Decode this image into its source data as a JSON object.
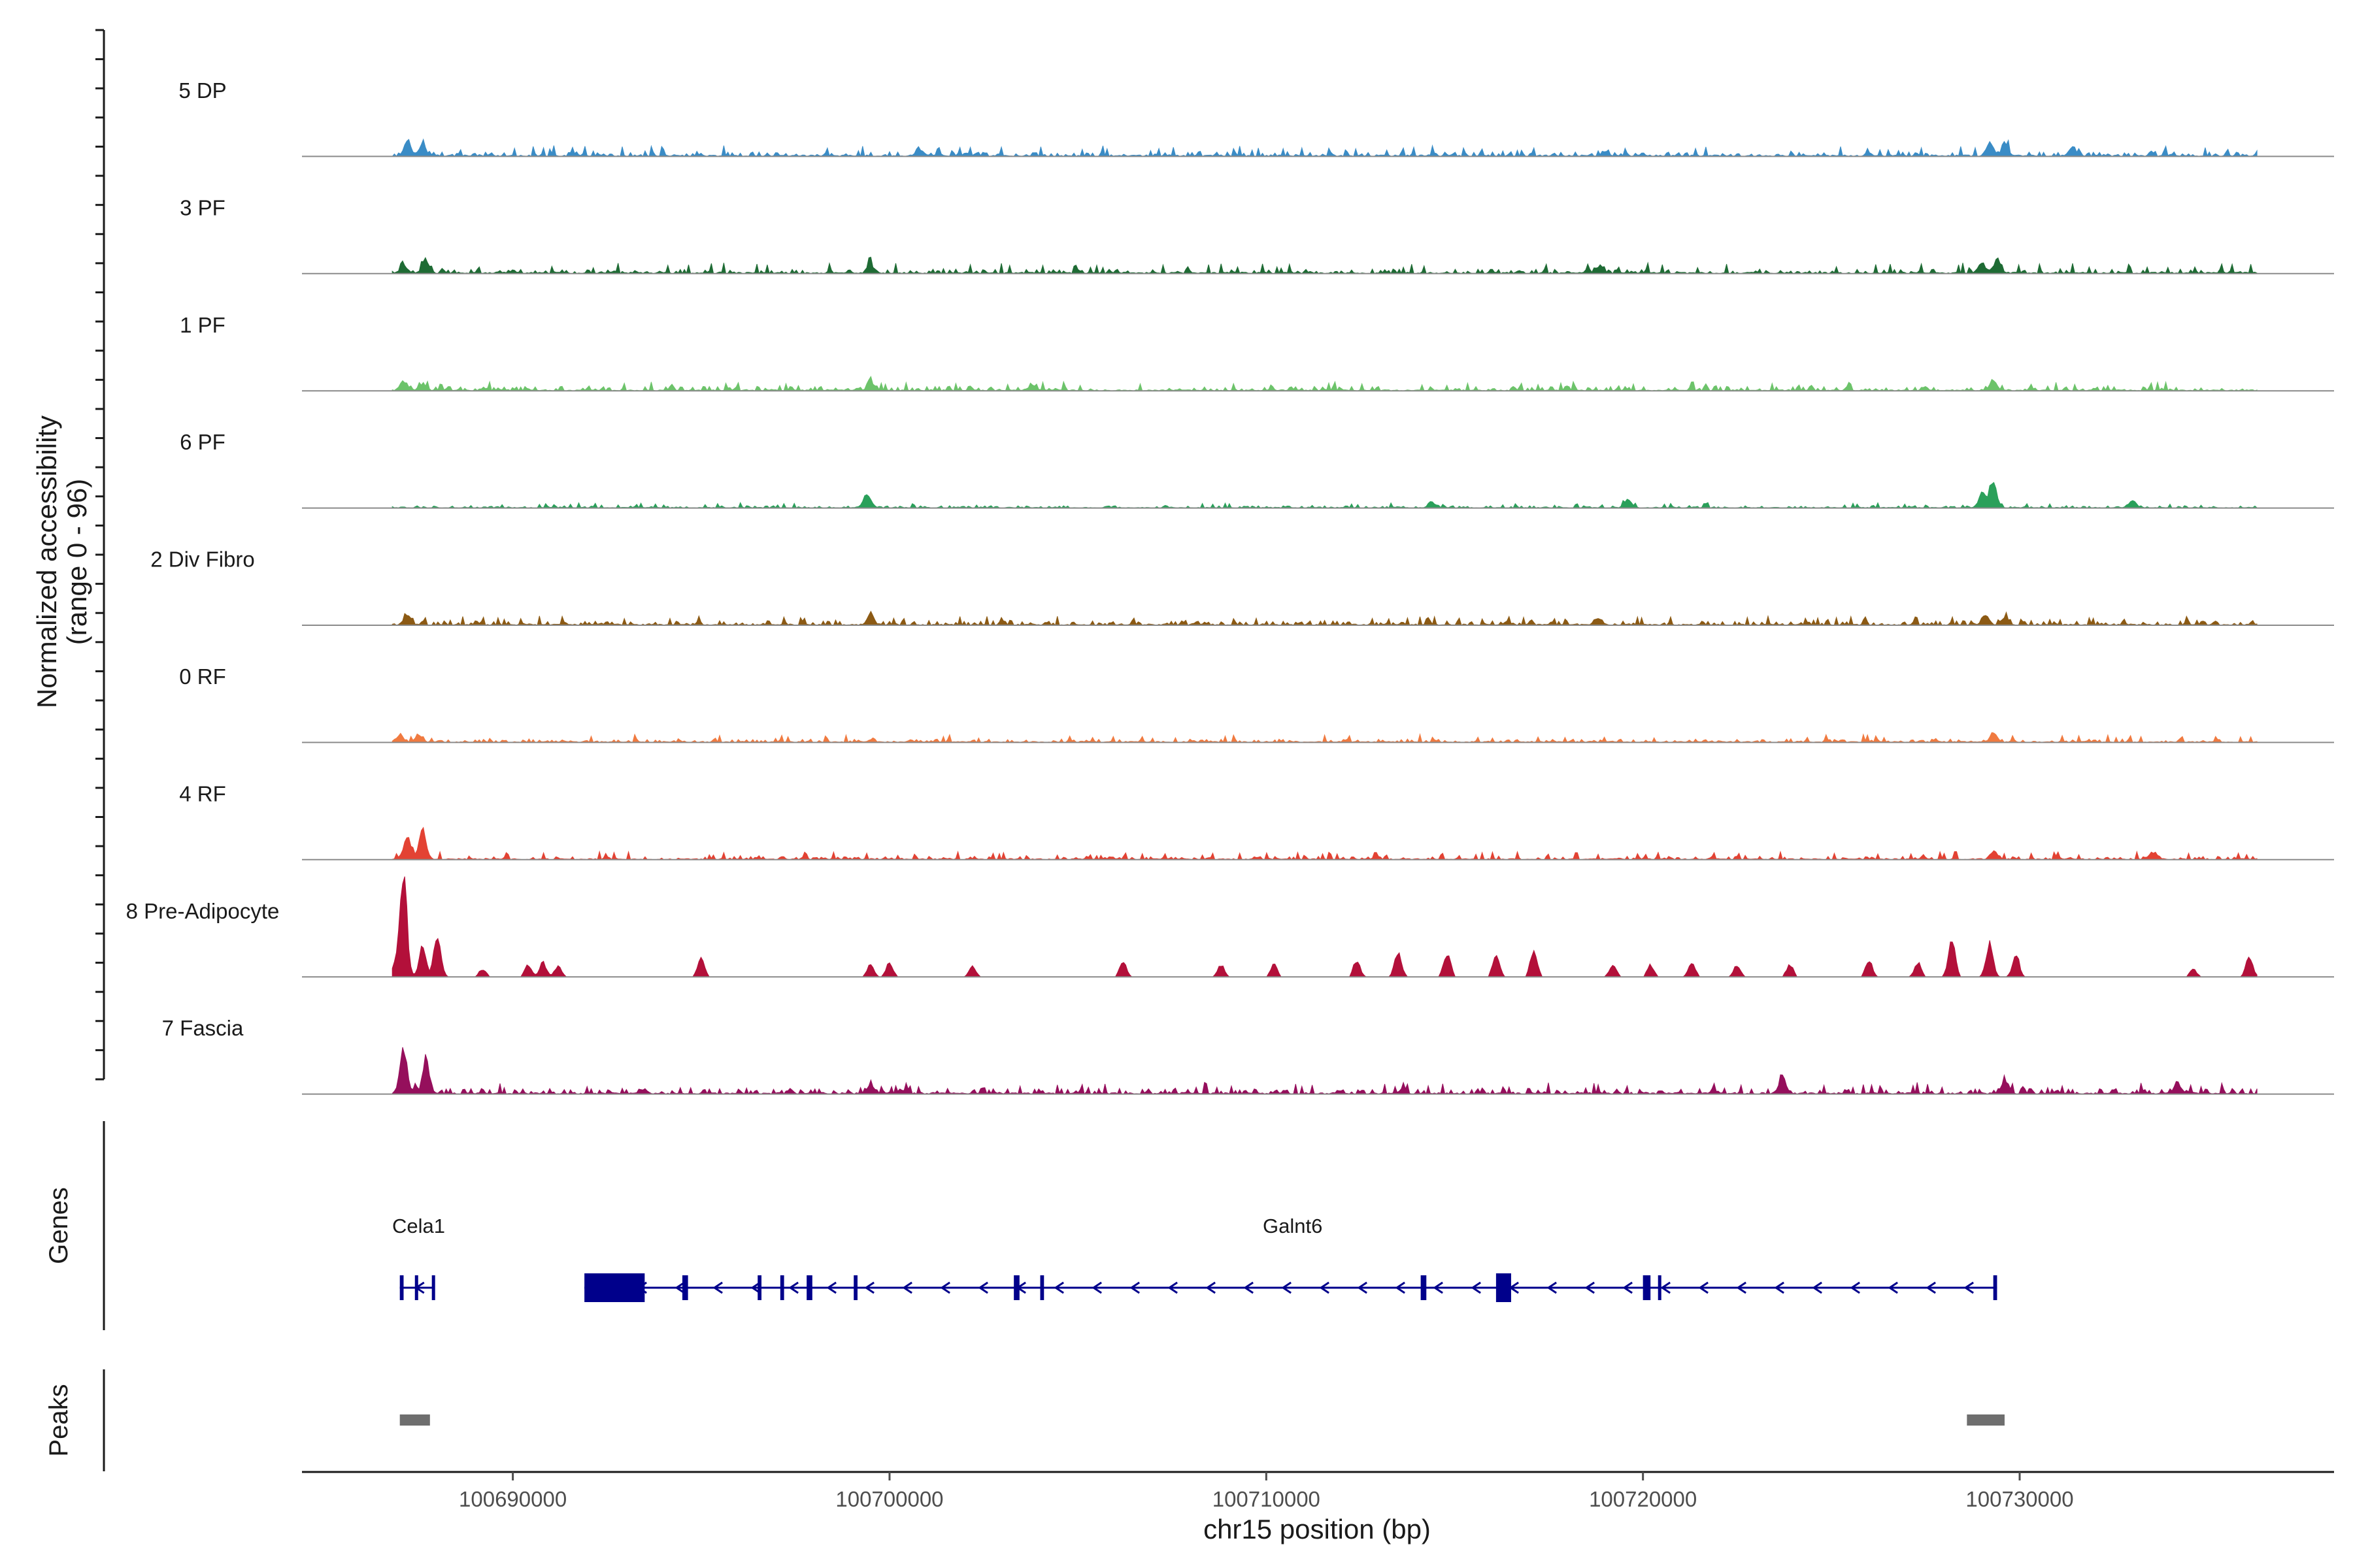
{
  "chart_data": {
    "type": "area",
    "title": "",
    "region": {
      "chrom": "chr15",
      "start": 100684000,
      "end": 100738500
    },
    "ylabel_line1": "Normalized accessibility",
    "ylabel_line2": "(range 0 - 96)",
    "y_range": [
      0,
      96
    ],
    "xlabel": "chr15 position (bp)",
    "x_ticks": [
      {
        "value": 100690000,
        "label": "100690000"
      },
      {
        "value": 100700000,
        "label": "100700000"
      },
      {
        "value": 100710000,
        "label": "100710000"
      },
      {
        "value": 100720000,
        "label": "100720000"
      },
      {
        "value": 100730000,
        "label": "100730000"
      }
    ],
    "tracks": [
      {
        "name": "5 DP",
        "color": "#3a8cc6",
        "baseline": 4,
        "noise": 4,
        "peaks": [
          [
            100687200,
            15
          ],
          [
            100687600,
            10
          ],
          [
            100700800,
            6
          ],
          [
            100719000,
            4
          ],
          [
            100729200,
            12
          ],
          [
            100729600,
            10
          ],
          [
            100731400,
            8
          ]
        ]
      },
      {
        "name": "3 PF",
        "color": "#1e6b34",
        "baseline": 4,
        "noise": 4,
        "peaks": [
          [
            100687100,
            8
          ],
          [
            100687700,
            12
          ],
          [
            100699500,
            8
          ],
          [
            100718800,
            5
          ],
          [
            100729000,
            9
          ],
          [
            100729400,
            14
          ]
        ]
      },
      {
        "name": "1 PF",
        "color": "#6cc36a",
        "baseline": 4,
        "noise": 3,
        "peaks": [
          [
            100687100,
            8
          ],
          [
            100687600,
            7
          ],
          [
            100699500,
            9
          ],
          [
            100703800,
            5
          ],
          [
            100729300,
            10
          ]
        ]
      },
      {
        "name": "6 PF",
        "color": "#2aa05a",
        "baseline": 2,
        "noise": 2,
        "peaks": [
          [
            100699400,
            14
          ],
          [
            100719600,
            8
          ],
          [
            100729300,
            24
          ],
          [
            100729000,
            14
          ],
          [
            100733000,
            7
          ],
          [
            100714400,
            6
          ]
        ]
      },
      {
        "name": "2 Div Fibro",
        "color": "#8c5a14",
        "baseline": 4,
        "noise": 3,
        "peaks": [
          [
            100687200,
            9
          ],
          [
            100699500,
            10
          ],
          [
            100718800,
            6
          ],
          [
            100729100,
            10
          ],
          [
            100729600,
            8
          ]
        ]
      },
      {
        "name": "0 RF",
        "color": "#f07a40",
        "baseline": 3,
        "noise": 3,
        "peaks": [
          [
            100687000,
            7
          ],
          [
            100687500,
            7
          ],
          [
            100729300,
            9
          ]
        ]
      },
      {
        "name": "4 RF",
        "color": "#e34233",
        "baseline": 3,
        "noise": 3,
        "peaks": [
          [
            100687200,
            24
          ],
          [
            100687600,
            30
          ],
          [
            100729300,
            8
          ],
          [
            100733500,
            6
          ]
        ]
      },
      {
        "name": "8 Pre-Adipocyte",
        "color": "#b3103a",
        "baseline": 0,
        "noise": 0,
        "peaks": [
          [
            100687100,
            96
          ],
          [
            100686900,
            14
          ],
          [
            100687600,
            30
          ],
          [
            100688000,
            42
          ],
          [
            100689200,
            8
          ],
          [
            100690400,
            12
          ],
          [
            100690800,
            14
          ],
          [
            100691200,
            10
          ],
          [
            100695000,
            20
          ],
          [
            100699500,
            12
          ],
          [
            100700000,
            14
          ],
          [
            100702200,
            10
          ],
          [
            100706200,
            14
          ],
          [
            100708800,
            12
          ],
          [
            100710200,
            12
          ],
          [
            100712400,
            16
          ],
          [
            100713500,
            26
          ],
          [
            100714800,
            24
          ],
          [
            100716100,
            20
          ],
          [
            100717100,
            26
          ],
          [
            100719200,
            12
          ],
          [
            100720200,
            12
          ],
          [
            100721300,
            14
          ],
          [
            100722500,
            12
          ],
          [
            100723900,
            12
          ],
          [
            100726000,
            16
          ],
          [
            100727300,
            14
          ],
          [
            100728200,
            38
          ],
          [
            100729200,
            34
          ],
          [
            100729900,
            22
          ],
          [
            100734600,
            8
          ],
          [
            100736100,
            20
          ]
        ]
      },
      {
        "name": "7 Fascia",
        "color": "#950f5c",
        "baseline": 5,
        "noise": 4,
        "peaks": [
          [
            100687100,
            45
          ],
          [
            100687700,
            34
          ],
          [
            100699500,
            8
          ],
          [
            100723700,
            14
          ],
          [
            100729600,
            12
          ],
          [
            100734200,
            10
          ]
        ]
      }
    ],
    "panels": {
      "genes": "Genes",
      "peaks": "Peaks"
    },
    "genes": [
      {
        "name": "Cela1",
        "strand": "-",
        "start": 100687000,
        "end": 100687900,
        "label_pos": 100687500,
        "exons": [
          [
            100687000,
            100687100
          ],
          [
            100687400,
            100687450
          ],
          [
            100687850,
            100687900
          ]
        ]
      },
      {
        "name": "Galnt6",
        "strand": "-",
        "start": 100691900,
        "end": 100729400,
        "label_pos": 100710700,
        "exons": [
          [
            100691900,
            100693500
          ],
          [
            100694500,
            100694650
          ],
          [
            100696500,
            100696600
          ],
          [
            100697100,
            100697200
          ],
          [
            100697800,
            100697950
          ],
          [
            100699050,
            100699150
          ],
          [
            100703300,
            100703450
          ],
          [
            100704000,
            100704100
          ],
          [
            100714100,
            100714250
          ],
          [
            100716100,
            100716500
          ],
          [
            100720000,
            100720200
          ],
          [
            100720400,
            100720450
          ],
          [
            100729300,
            100729400
          ]
        ]
      }
    ],
    "peaks": [
      {
        "start": 100687000,
        "end": 100687800
      },
      {
        "start": 100728600,
        "end": 100729600
      }
    ],
    "gene_color": "#00008b",
    "peak_color": "#6e6e6e"
  }
}
